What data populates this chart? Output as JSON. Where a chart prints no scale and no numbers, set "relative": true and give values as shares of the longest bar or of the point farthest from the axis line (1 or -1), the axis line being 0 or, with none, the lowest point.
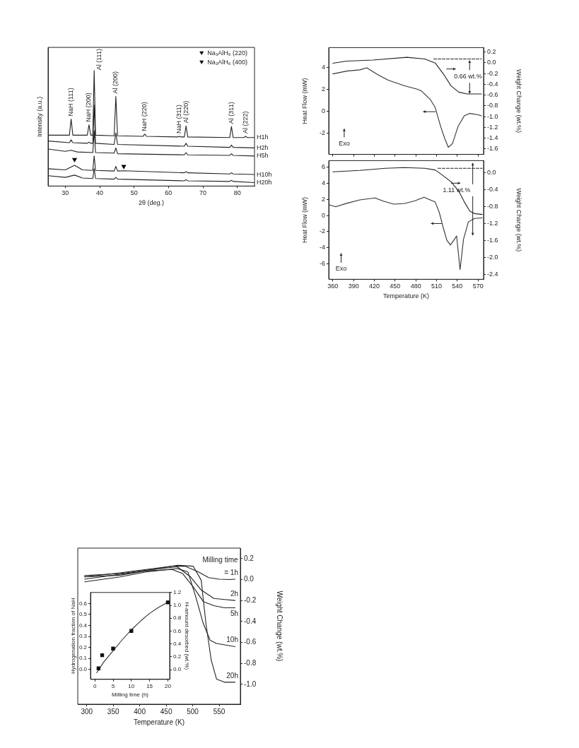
{
  "chart_data": [
    {
      "type": "line",
      "relative": true,
      "xlabel": "2θ (deg.)",
      "ylabel": "Intensity (a.u.)",
      "xlim": [
        25,
        85
      ],
      "xticks": [
        30,
        40,
        50,
        60,
        70,
        80
      ],
      "legend": "top right",
      "grid": false,
      "annotations": [
        {
          "text": "NaH (111)",
          "x": 31.7,
          "y": 0.58
        },
        {
          "text": "NaH (200)",
          "x": 36.9,
          "y": 0.53
        },
        {
          "text": "Al (111)",
          "x": 38.4,
          "y": 1.0
        },
        {
          "text": "Al (200)",
          "x": 44.7,
          "y": 0.775
        },
        {
          "text": "NaH (220)",
          "x": 53.1,
          "y": 0.45
        },
        {
          "text": "NaH (311)",
          "x": 63.2,
          "y": 0.43
        },
        {
          "text": "Al (220)",
          "x": 65.1,
          "y": 0.52
        },
        {
          "text": "Al (311)",
          "x": 78.3,
          "y": 0.515
        },
        {
          "text": "Al (222)",
          "x": 82.4,
          "y": 0.43
        }
      ],
      "series": [
        {
          "name": "H1h",
          "color": "#222222",
          "x": [
            25,
            30,
            31.2,
            31.7,
            32.2,
            36.4,
            36.9,
            37.4,
            38.0,
            38.4,
            38.8,
            44.2,
            44.7,
            45.2,
            52.6,
            53.1,
            53.6,
            62.7,
            63.2,
            63.7,
            64.6,
            65.1,
            65.6,
            77.8,
            78.3,
            78.8,
            81.9,
            82.4,
            82.9,
            85
          ],
          "values": [
            0.44,
            0.44,
            0.44,
            0.58,
            0.44,
            0.44,
            0.53,
            0.44,
            0.44,
            1.0,
            0.44,
            0.435,
            0.775,
            0.435,
            0.43,
            0.45,
            0.43,
            0.425,
            0.43,
            0.425,
            0.425,
            0.52,
            0.425,
            0.42,
            0.515,
            0.42,
            0.42,
            0.43,
            0.42,
            0.42
          ]
        },
        {
          "name": "H2h",
          "color": "#222222",
          "x": [
            25,
            31.2,
            31.7,
            32.2,
            36.4,
            36.9,
            37.4,
            38.0,
            38.4,
            38.8,
            44.2,
            44.7,
            45.2,
            64.6,
            65.1,
            65.6,
            77.8,
            78.3,
            78.8,
            85
          ],
          "values": [
            0.39,
            0.375,
            0.4,
            0.375,
            0.37,
            0.38,
            0.37,
            0.37,
            0.7,
            0.37,
            0.36,
            0.46,
            0.36,
            0.345,
            0.37,
            0.345,
            0.335,
            0.355,
            0.335,
            0.33
          ]
        },
        {
          "name": "H5h",
          "color": "#222222",
          "x": [
            25,
            30,
            31.7,
            33.5,
            38.0,
            38.4,
            38.8,
            44.2,
            44.7,
            45.2,
            64.6,
            65.1,
            65.6,
            77.8,
            78.3,
            78.8,
            85
          ],
          "values": [
            0.32,
            0.3,
            0.31,
            0.295,
            0.29,
            0.48,
            0.29,
            0.285,
            0.33,
            0.28,
            0.27,
            0.29,
            0.27,
            0.265,
            0.28,
            0.265,
            0.26
          ]
        },
        {
          "name": "H10h",
          "color": "#222222",
          "x": [
            25,
            30,
            32.7,
            35,
            38.0,
            38.4,
            38.8,
            44.2,
            44.7,
            45.2,
            47,
            64.6,
            65.1,
            65.6,
            77.8,
            78.3,
            78.8,
            85
          ],
          "values": [
            0.15,
            0.14,
            0.18,
            0.14,
            0.135,
            0.26,
            0.135,
            0.13,
            0.17,
            0.13,
            0.132,
            0.115,
            0.125,
            0.115,
            0.105,
            0.115,
            0.105,
            0.1
          ]
        },
        {
          "name": "H20h",
          "color": "#222222",
          "x": [
            25,
            30,
            32.7,
            35,
            38.0,
            38.4,
            38.8,
            44.2,
            44.7,
            45.2,
            64.6,
            65.1,
            65.6,
            77.8,
            78.3,
            78.8,
            85
          ],
          "values": [
            0.09,
            0.075,
            0.095,
            0.07,
            0.065,
            0.15,
            0.065,
            0.06,
            0.075,
            0.06,
            0.045,
            0.055,
            0.045,
            0.04,
            0.05,
            0.04,
            0.03
          ]
        },
        {
          "name": "Na₃AlH₆ (220)",
          "type": "scatter",
          "marker": "triangle",
          "color": "#000000",
          "x": [
            32.7
          ],
          "values": [
            0.23
          ]
        },
        {
          "name": "Na₃AlH₆ (400)",
          "type": "scatter",
          "marker": "triangle",
          "color": "#000000",
          "x": [
            47
          ],
          "values": [
            0.17
          ]
        }
      ]
    },
    {
      "type": "line",
      "ylabel": "Heat Flow (mW)",
      "y2label": "Weight Change (wt.%)",
      "xlim": [
        354,
        578
      ],
      "xticks": [
        360,
        390,
        420,
        450,
        480,
        510,
        540,
        570
      ],
      "ylim": [
        -3.9,
        5.8
      ],
      "yticks": [
        -2,
        0,
        2,
        4
      ],
      "y2lim": [
        -1.7,
        0.28
      ],
      "y2ticks": [
        0.2,
        {
          "value": 0,
          "label": "0.0"
        },
        -0.2,
        -0.4,
        -0.6,
        -0.8,
        {
          "value": -1,
          "label": "-1.0"
        },
        -1.2,
        -1.4,
        -1.6
      ],
      "tick_labels": "y",
      "grid": false,
      "annotations": [
        "Exo",
        "0.66 wt.%"
      ],
      "series": [
        {
          "color": "#333333",
          "x": [
            360,
            380,
            399,
            409,
            425,
            440,
            463,
            482,
            488,
            501,
            508,
            516,
            522,
            527,
            533,
            541,
            550,
            558,
            569,
            575
          ],
          "values": [
            3.41,
            3.67,
            3.78,
            3.96,
            3.34,
            2.84,
            2.35,
            2.02,
            1.87,
            1.08,
            0.37,
            -1.38,
            -2.48,
            -3.25,
            -2.92,
            -1.38,
            -0.4,
            -0.18,
            -0.29,
            -0.4
          ]
        },
        {
          "color": "#222222",
          "axis": "y2",
          "x": [
            360,
            380,
            418,
            467,
            493,
            508,
            520,
            531,
            542,
            554,
            575
          ],
          "values": [
            -0.01,
            0.03,
            0.05,
            0.1,
            0.07,
            -0.005,
            -0.21,
            -0.43,
            -0.545,
            -0.58,
            -0.58
          ]
        },
        {
          "color": "#222222",
          "axis": "y2",
          "line_style": "dashed",
          "x": [
            506,
            575
          ],
          "values": [
            0.07,
            0.07
          ]
        }
      ]
    },
    {
      "type": "line",
      "xlabel": "Temperature (K)",
      "ylabel": "Heat Flow (mW)",
      "y2label": "Weight Change (wt.%)",
      "xlim": [
        354,
        578
      ],
      "xticks": [
        360,
        390,
        420,
        450,
        480,
        510,
        540,
        570
      ],
      "ylim": [
        -7.9,
        6.8
      ],
      "yticks": [
        -6,
        -4,
        -2,
        0,
        2,
        4,
        6
      ],
      "y2lim": [
        -2.51,
        0.29
      ],
      "y2ticks": [
        {
          "value": 0,
          "label": "0.0"
        },
        -0.4,
        -0.8,
        -1.2,
        -1.6,
        {
          "value": -2,
          "label": "-2.0"
        },
        -2.4
      ],
      "grid": false,
      "annotations": [
        "Exo",
        "1.11 wt.%"
      ],
      "series": [
        {
          "color": "#333333",
          "x": [
            354,
            364,
            380,
            399,
            421,
            433,
            448,
            463,
            478,
            492,
            499,
            508,
            514,
            520,
            525,
            530,
            536,
            539,
            544,
            549,
            556,
            565,
            576
          ],
          "values": [
            1.35,
            1.09,
            1.51,
            1.94,
            2.17,
            1.78,
            1.41,
            1.48,
            1.81,
            2.27,
            2.01,
            1.68,
            0.36,
            -1.61,
            -3.09,
            -3.65,
            -2.93,
            -2.53,
            -6.71,
            -2.93,
            -0.79,
            -0.36,
            -0.3
          ]
        },
        {
          "color": "#222222",
          "axis": "y2",
          "x": [
            360,
            399,
            436,
            463,
            493,
            508,
            519,
            531,
            542,
            550,
            558,
            565,
            576
          ],
          "values": [
            0.025,
            0.06,
            0.11,
            0.125,
            0.11,
            0.07,
            -0.06,
            -0.21,
            -0.43,
            -0.68,
            -0.9,
            -0.96,
            -0.98
          ]
        },
        {
          "color": "#222222",
          "axis": "y2",
          "line_style": "dashed",
          "x": [
            512,
            576
          ],
          "values": [
            0.11,
            0.11
          ]
        }
      ]
    },
    {
      "type": "line",
      "xlabel": "Temperature (K)",
      "y2label": "Weight Change (wt.%)",
      "xlim": [
        283,
        590
      ],
      "xticks": [
        300,
        350,
        400,
        450,
        500,
        550
      ],
      "y2lim": [
        -1.19,
        0.3
      ],
      "y2ticks": [
        0.2,
        {
          "value": 0,
          "label": "0.0"
        },
        -0.2,
        -0.4,
        -0.6,
        -0.8,
        {
          "value": -1,
          "label": "-1.0"
        }
      ],
      "grid": false,
      "annotations": [
        "Milling time"
      ],
      "series": [
        {
          "name": "= 1h",
          "color": "#222222",
          "axis": "y2",
          "x": [
            296,
            363,
            412,
            461,
            486,
            511,
            530,
            550,
            570,
            580
          ],
          "values": [
            0.025,
            0.064,
            0.096,
            0.127,
            0.127,
            0.073,
            0.019,
            0.003,
            0,
            0.003
          ]
        },
        {
          "name": "2h",
          "color": "#222222",
          "axis": "y2",
          "x": [
            296,
            363,
            412,
            471,
            496,
            516,
            540,
            560,
            580
          ],
          "values": [
            0.038,
            0.057,
            0.089,
            0.121,
            0.025,
            -0.1,
            -0.18,
            -0.19,
            -0.2
          ]
        },
        {
          "name": "5h",
          "color": "#222222",
          "axis": "y2",
          "x": [
            296,
            363,
            412,
            461,
            481,
            501,
            520,
            540,
            560,
            580
          ],
          "values": [
            0.003,
            0.051,
            0.083,
            0.096,
            0.057,
            -0.07,
            -0.21,
            -0.25,
            -0.27,
            -0.27
          ]
        },
        {
          "name": "10h",
          "color": "#222222",
          "axis": "y2",
          "x": [
            296,
            363,
            412,
            471,
            491,
            506,
            520,
            533,
            545,
            580
          ],
          "values": [
            -0.022,
            0.025,
            0.073,
            0.105,
            0.073,
            -0.17,
            -0.42,
            -0.58,
            -0.61,
            -0.64
          ]
        },
        {
          "name": "20h",
          "color": "#222222",
          "axis": "y2",
          "x": [
            296,
            363,
            412,
            471,
            501,
            516,
            525,
            535,
            545,
            560,
            580
          ],
          "values": [
            0.025,
            0.041,
            0.083,
            0.137,
            0.127,
            -0.006,
            -0.42,
            -0.77,
            -0.95,
            -0.98,
            -0.98
          ]
        }
      ]
    },
    {
      "type": "scatter",
      "xlabel": "Milling time (h)",
      "ylabel": "Hydrogenation fraction of NaH",
      "y2label": "H-amount desorbed (wt.%)",
      "xlim": [
        -1.2,
        20.5
      ],
      "xticks": [
        0,
        5,
        10,
        15,
        20
      ],
      "ylim": [
        -0.09,
        0.7
      ],
      "yticks": [
        {
          "value": 0,
          "label": "0.0"
        },
        0.1,
        0.2,
        0.3,
        0.4,
        0.5,
        0.6
      ],
      "y2lim": [
        -0.15,
        1.2
      ],
      "y2ticks": [
        {
          "value": 0,
          "label": "0.0"
        },
        0.2,
        0.4,
        0.6,
        0.8,
        {
          "value": 1,
          "label": "1.0"
        },
        1.2
      ],
      "grid": false,
      "series": [
        {
          "color": "#111111",
          "marker": "square",
          "x": [
            1,
            2,
            5,
            10,
            20
          ],
          "values": [
            0.01,
            0.13,
            0.19,
            0.35,
            0.61
          ]
        },
        {
          "type": "line",
          "color": "#333333",
          "x": [
            0.5,
            2.5,
            5,
            7.5,
            10,
            12.5,
            15,
            17.5,
            20
          ],
          "values": [
            -0.03,
            0.07,
            0.17,
            0.27,
            0.36,
            0.44,
            0.51,
            0.565,
            0.61
          ]
        }
      ]
    }
  ]
}
